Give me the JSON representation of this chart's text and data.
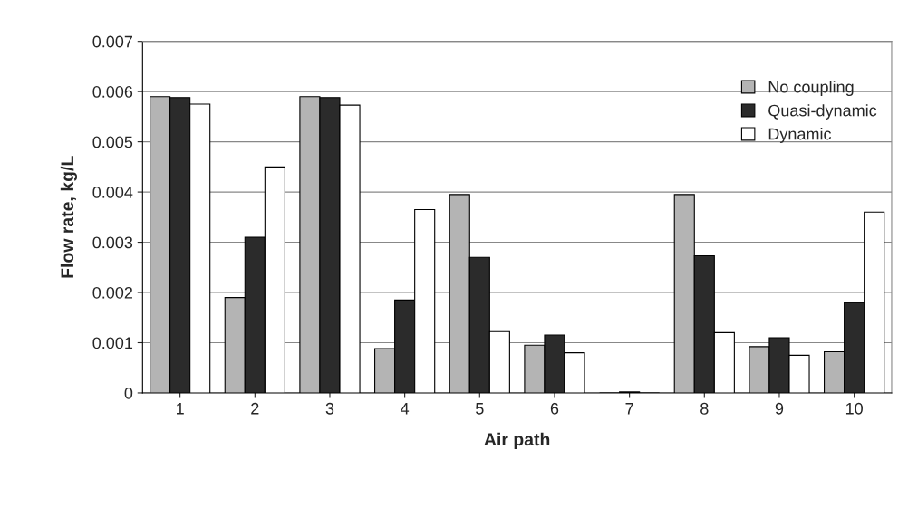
{
  "chart_data": {
    "type": "bar",
    "xlabel": "Air path",
    "ylabel": "Flow rate, kg/L",
    "categories": [
      "1",
      "2",
      "3",
      "4",
      "5",
      "6",
      "7",
      "8",
      "9",
      "10"
    ],
    "series": [
      {
        "name": "No coupling",
        "color": "#b4b4b4",
        "values": [
          0.0059,
          0.0019,
          0.0059,
          0.00088,
          0.00395,
          0.00095,
          0.0,
          0.00395,
          0.00092,
          0.00082
        ]
      },
      {
        "name": "Quasi-dynamic",
        "color": "#2b2b2b",
        "values": [
          0.00588,
          0.0031,
          0.00588,
          0.00185,
          0.0027,
          0.00115,
          2e-05,
          0.00273,
          0.0011,
          0.0018
        ]
      },
      {
        "name": "Dynamic",
        "color": "#ffffff",
        "values": [
          0.00575,
          0.0045,
          0.00573,
          0.00365,
          0.00122,
          0.0008,
          0.0,
          0.0012,
          0.00075,
          0.0036
        ]
      }
    ],
    "ylim": [
      0,
      0.007
    ],
    "yticks": [
      {
        "value": 0,
        "label": "0"
      },
      0.001,
      0.002,
      0.003,
      0.004,
      0.005,
      0.006,
      0.007
    ],
    "grid": "y",
    "legend": "top right"
  }
}
